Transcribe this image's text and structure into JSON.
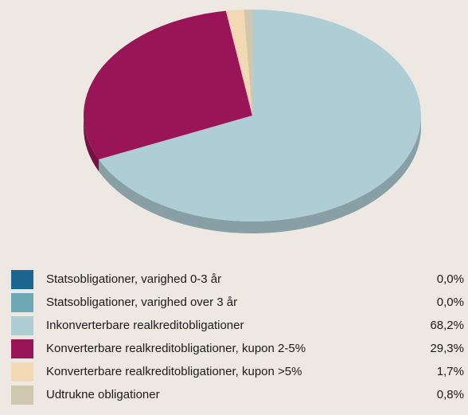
{
  "chart_data": {
    "type": "pie",
    "categories": [
      "Statsobligationer, varighed 0-3 år",
      "Statsobligationer, varighed over 3 år",
      "Inkonverterbare realkreditobligationer",
      "Konverterbare realkreditobligationer, kupon 2-5%",
      "Konverterbare realkreditobligationer, kupon >5%",
      "Udtrukne obligationer"
    ],
    "values": [
      0.0,
      0.0,
      68.2,
      29.3,
      1.7,
      0.8
    ],
    "value_labels": [
      "0,0%",
      "0,0%",
      "68,2%",
      "29,3%",
      "1,7%",
      "0,8%"
    ],
    "colors": [
      "#1b6690",
      "#6eaab5",
      "#aecdd4",
      "#9a1458",
      "#f2d9b4",
      "#cfc8ae"
    ]
  }
}
